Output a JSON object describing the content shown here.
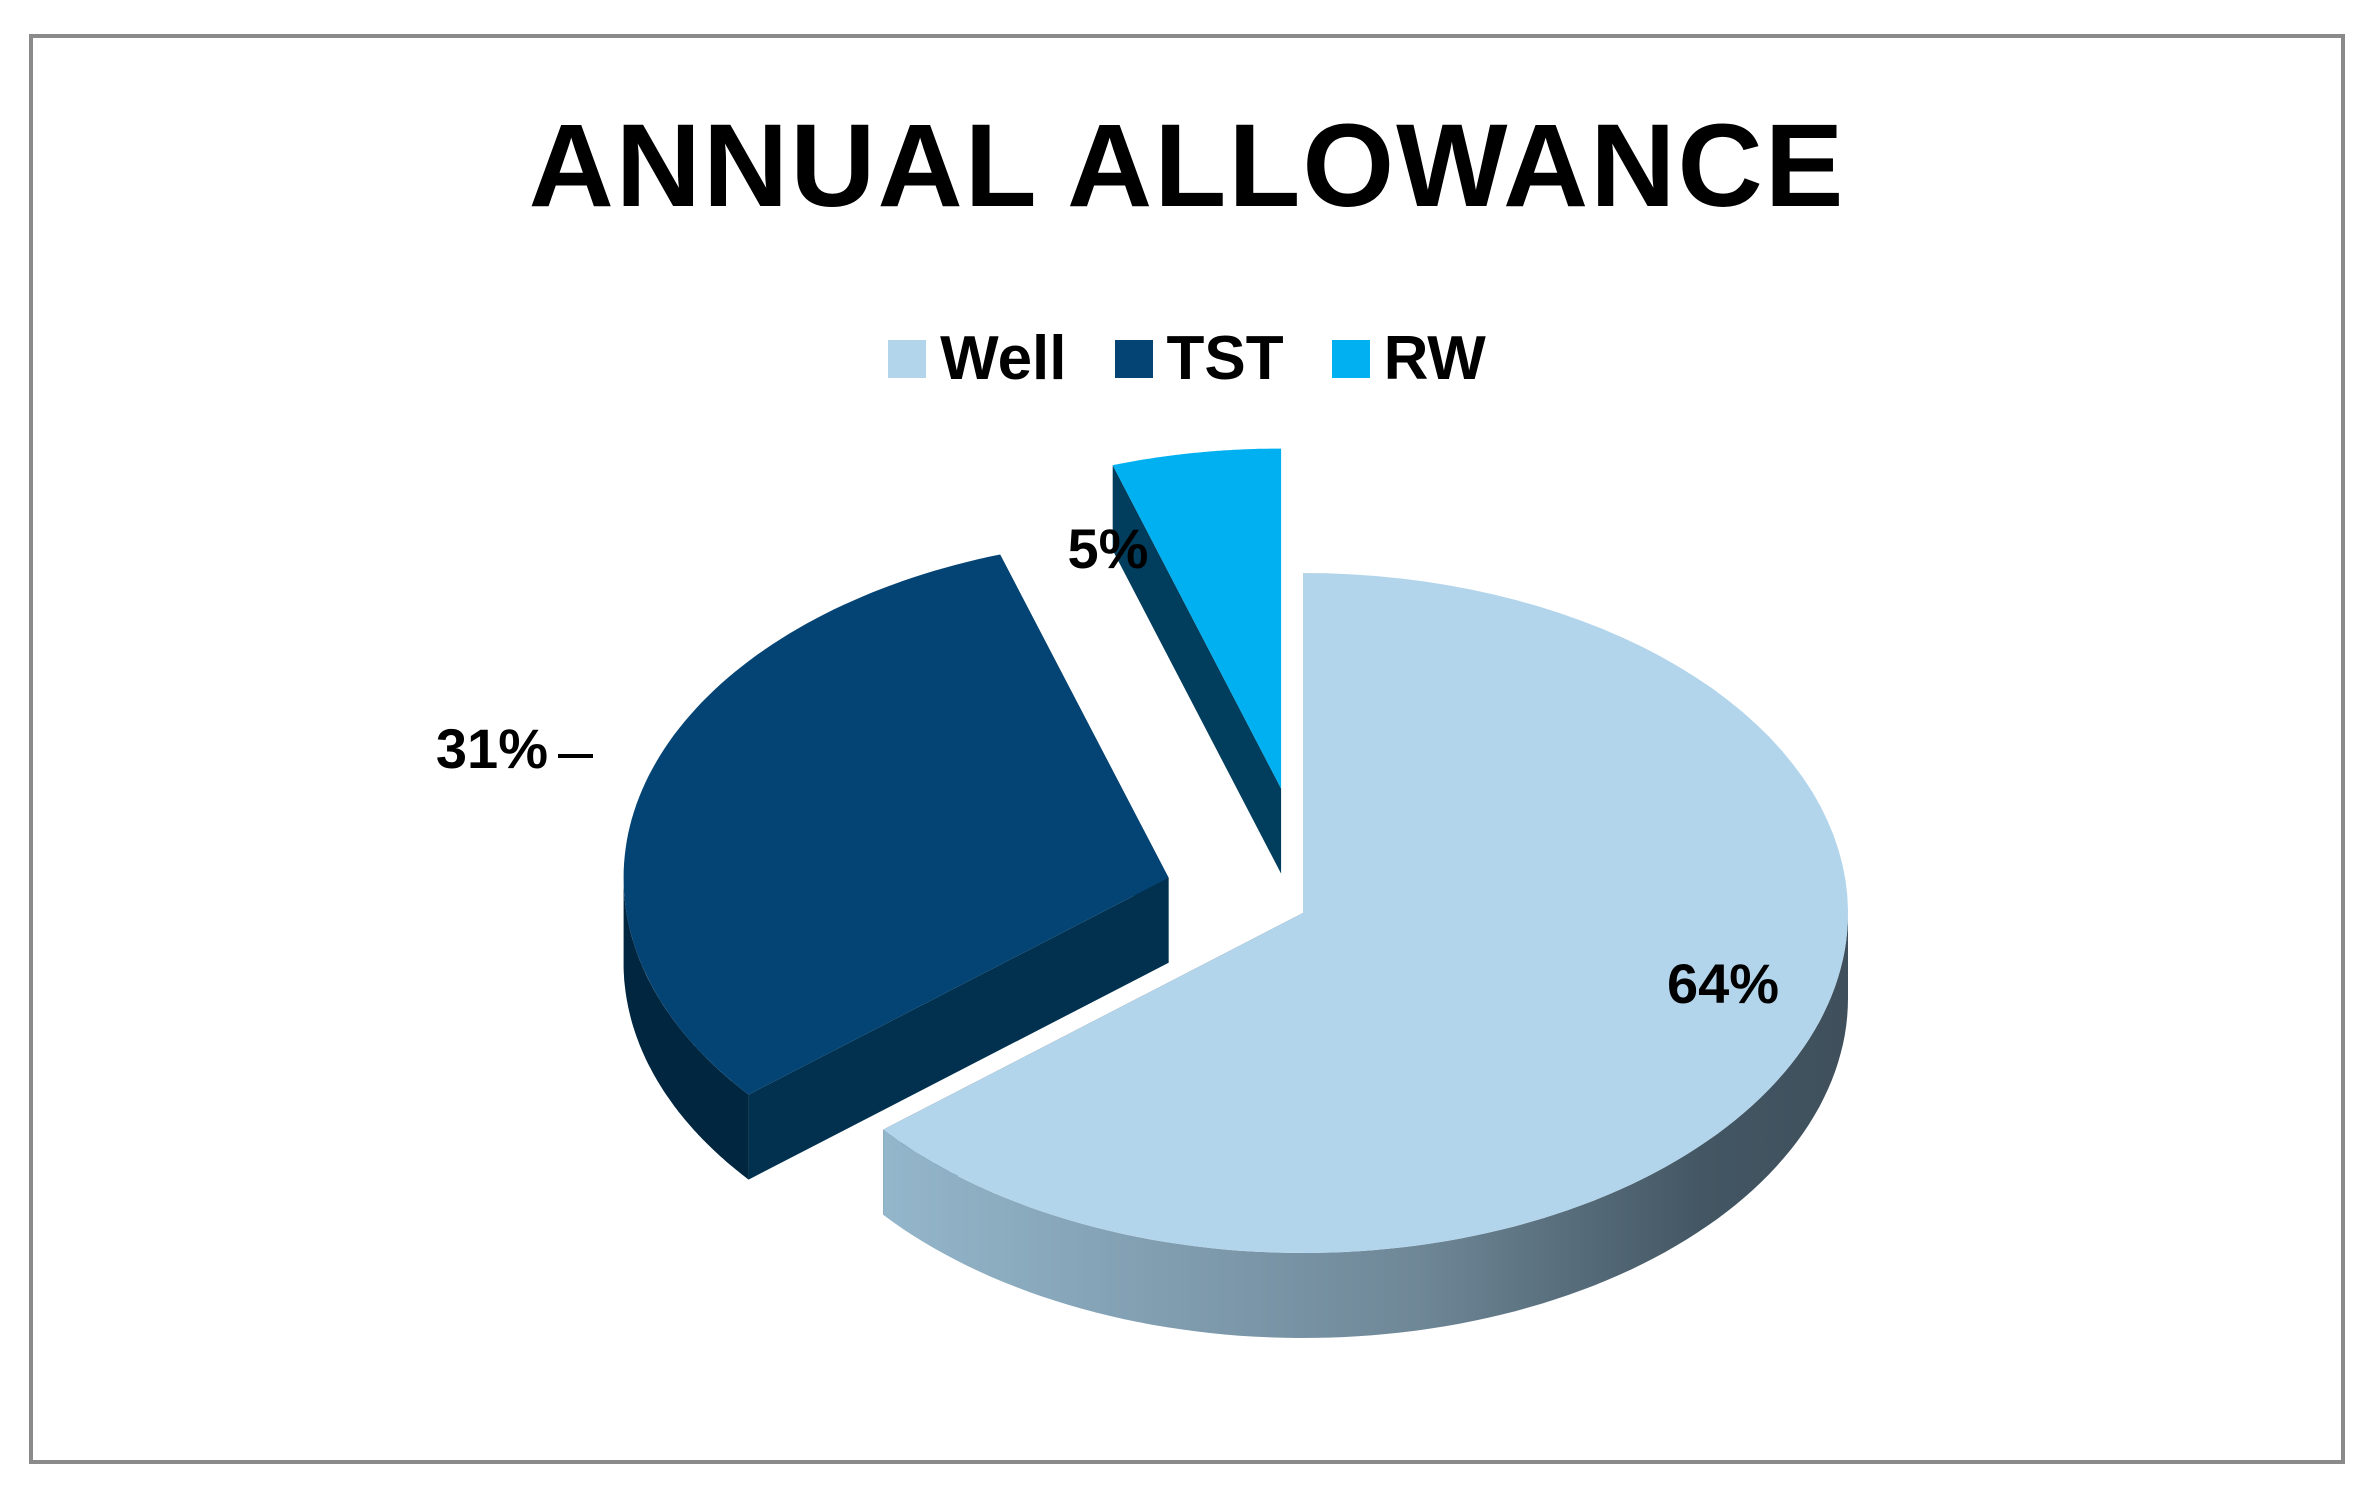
{
  "chart_data": {
    "type": "pie",
    "title": "ANNUAL ALLOWANCE",
    "legend_position": "top",
    "slices": [
      {
        "name": "Well",
        "value": 64,
        "label": "64%",
        "color": "#b3d5ec"
      },
      {
        "name": "TST",
        "value": 31,
        "label": "31%",
        "color": "#044474"
      },
      {
        "name": "RW",
        "value": 5,
        "label": "5%",
        "color": "#00b0f0"
      }
    ]
  }
}
